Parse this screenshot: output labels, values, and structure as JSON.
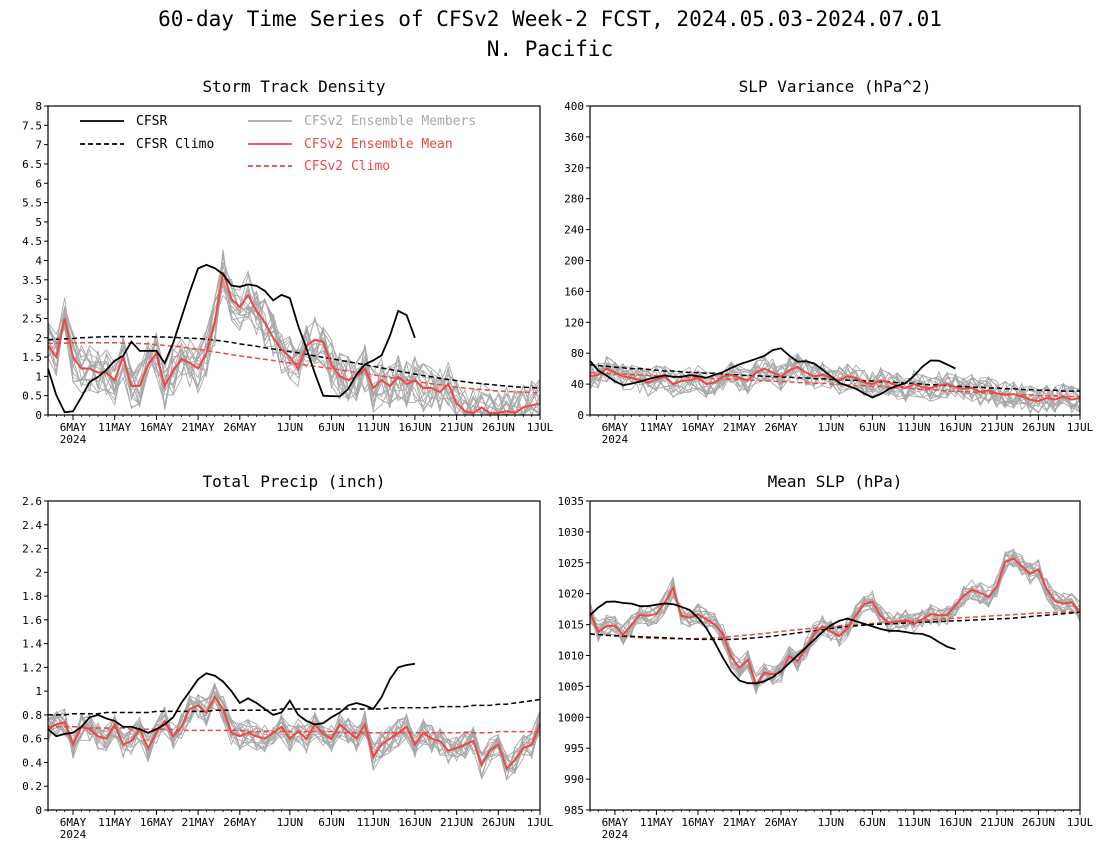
{
  "figure": {
    "title": "60-day Time Series of CFSv2 Week-2 FCST, 2024.05.03-2024.07.01",
    "subtitle": "N. Pacific"
  },
  "legend": {
    "cfsr": "CFSR",
    "cfsr_climo": "CFSR Climo",
    "members": "CFSv2 Ensemble Members",
    "ens_mean": "CFSv2 Ensemble Mean",
    "cfsv2_climo": "CFSv2 Climo"
  },
  "colors": {
    "cfsr": "#000000",
    "cfsr_climo": "#000000",
    "members": "#a8a8a8",
    "ens_mean": "#f04646",
    "cfsv2_climo": "#f04646"
  },
  "x_axis": {
    "ticks": [
      {
        "day": 3,
        "label": "6MAY"
      },
      {
        "day": 8,
        "label": "11MAY"
      },
      {
        "day": 13,
        "label": "16MAY"
      },
      {
        "day": 18,
        "label": "21MAY"
      },
      {
        "day": 23,
        "label": "26MAY"
      },
      {
        "day": 29,
        "label": "1JUN"
      },
      {
        "day": 34,
        "label": "6JUN"
      },
      {
        "day": 39,
        "label": "11JUN"
      },
      {
        "day": 44,
        "label": "16JUN"
      },
      {
        "day": 49,
        "label": "21JUN"
      },
      {
        "day": 54,
        "label": "26JUN"
      },
      {
        "day": 59,
        "label": "1JUL"
      }
    ],
    "year_label": "2024",
    "range": [
      "2024-05-03",
      "2024-07-01"
    ]
  },
  "chart_data": [
    {
      "type": "line",
      "title": "Storm Track Density",
      "ylim": [
        0,
        8
      ],
      "yticks": [
        "0",
        "0.5",
        "1",
        "1.5",
        "2",
        "2.5",
        "3",
        "3.5",
        "4",
        "4.5",
        "5",
        "5.5",
        "6",
        "6.5",
        "7",
        "7.5",
        "8"
      ],
      "show_legend": true,
      "cfsr_obs_days": 45,
      "series": [
        {
          "name": "CFSR",
          "values": [
            1.2,
            0.5,
            0.05,
            0.1,
            0.5,
            0.9,
            1.0,
            1.2,
            1.45,
            1.55,
            2.0,
            1.55,
            1.7,
            1.65,
            1.2,
            2.2,
            2.7,
            3.5,
            4.0,
            3.8,
            3.8,
            3.5,
            3.2,
            3.45,
            3.3,
            3.4,
            2.95,
            3.0,
            3.3,
            2.5,
            1.9,
            1.3,
            0.5,
            0.5,
            0.45,
            0.6,
            1.0,
            1.3,
            1.4,
            1.5,
            2.0,
            2.7,
            2.6,
            2.0
          ]
        },
        {
          "name": "CFSR Climo",
          "values": [
            1.95,
            1.96,
            1.97,
            1.98,
            2.0,
            2.01,
            2.02,
            2.03,
            2.03,
            2.03,
            2.03,
            2.03,
            2.03,
            2.02,
            2.02,
            2.01,
            2.0,
            1.99,
            1.98,
            1.96,
            1.94,
            1.91,
            1.88,
            1.84,
            1.81,
            1.78,
            1.74,
            1.71,
            1.68,
            1.64,
            1.61,
            1.57,
            1.53,
            1.49,
            1.46,
            1.42,
            1.38,
            1.34,
            1.3,
            1.26,
            1.22,
            1.18,
            1.14,
            1.1,
            1.06,
            1.02,
            0.99,
            0.95,
            0.92,
            0.89,
            0.86,
            0.83,
            0.81,
            0.79,
            0.77,
            0.75,
            0.73,
            0.72,
            0.71,
            0.7
          ]
        },
        {
          "name": "CFSv2 Ensemble Mean",
          "values": [
            1.8,
            1.5,
            2.5,
            1.5,
            1.2,
            1.2,
            1.1,
            1.1,
            0.9,
            1.5,
            0.75,
            0.75,
            1.3,
            1.6,
            0.75,
            1.15,
            1.45,
            1.35,
            1.2,
            1.6,
            2.4,
            3.7,
            3.0,
            2.8,
            3.1,
            2.7,
            2.4,
            2.0,
            1.7,
            1.5,
            1.2,
            1.8,
            1.95,
            1.9,
            1.3,
            1.0,
            0.9,
            1.0,
            1.2,
            0.7,
            0.9,
            0.75,
            1.0,
            0.8,
            0.9,
            0.7,
            0.7,
            0.6,
            0.8,
            0.3,
            0.1,
            0.05,
            0.2,
            0.05,
            0.05,
            0.1,
            0.05,
            0.2,
            0.25,
            0.3
          ]
        },
        {
          "name": "CFSv2 Climo",
          "values": [
            1.85,
            1.86,
            1.86,
            1.87,
            1.87,
            1.87,
            1.87,
            1.87,
            1.87,
            1.86,
            1.86,
            1.85,
            1.84,
            1.82,
            1.8,
            1.78,
            1.76,
            1.73,
            1.7,
            1.67,
            1.63,
            1.6,
            1.56,
            1.53,
            1.5,
            1.47,
            1.44,
            1.41,
            1.38,
            1.35,
            1.32,
            1.29,
            1.26,
            1.23,
            1.2,
            1.17,
            1.14,
            1.1,
            1.07,
            1.04,
            1.01,
            0.97,
            0.94,
            0.91,
            0.87,
            0.84,
            0.81,
            0.78,
            0.75,
            0.72,
            0.7,
            0.68,
            0.66,
            0.64,
            0.62,
            0.61,
            0.6,
            0.59,
            0.58,
            0.57
          ]
        }
      ]
    },
    {
      "type": "line",
      "title": "SLP Variance (hPa^2)",
      "ylim": [
        0,
        400
      ],
      "yticks": [
        "0",
        "40",
        "80",
        "120",
        "160",
        "200",
        "240",
        "280",
        "320",
        "360",
        "400"
      ],
      "show_legend": false,
      "cfsr_obs_days": 45,
      "series": [
        {
          "name": "CFSR",
          "values": [
            70,
            58,
            52,
            45,
            38,
            40,
            42,
            45,
            48,
            50,
            52,
            48,
            50,
            52,
            50,
            48,
            52,
            55,
            60,
            65,
            68,
            72,
            74,
            80,
            88,
            85,
            72,
            68,
            70,
            66,
            58,
            50,
            42,
            38,
            35,
            30,
            22,
            24,
            32,
            36,
            40,
            42,
            55,
            65,
            72,
            70,
            65,
            60
          ]
        },
        {
          "name": "CFSR Climo",
          "values": [
            65,
            64,
            63,
            62,
            61,
            60,
            60,
            59,
            58,
            57,
            57,
            56,
            55,
            55,
            54,
            54,
            53,
            52,
            52,
            51,
            51,
            50,
            50,
            49,
            49,
            48,
            48,
            47,
            47,
            46,
            46,
            45,
            45,
            44,
            44,
            43,
            43,
            42,
            41,
            41,
            40,
            39,
            39,
            38,
            37,
            37,
            36,
            36,
            35,
            35,
            34,
            34,
            33,
            33,
            32,
            32,
            32,
            31,
            31,
            31
          ]
        },
        {
          "name": "CFSv2 Ensemble Mean",
          "values": [
            50,
            52,
            60,
            55,
            50,
            48,
            45,
            42,
            46,
            50,
            40,
            44,
            45,
            48,
            40,
            42,
            50,
            52,
            48,
            45,
            55,
            60,
            55,
            50,
            58,
            62,
            55,
            50,
            52,
            48,
            45,
            50,
            48,
            42,
            40,
            45,
            42,
            38,
            35,
            40,
            36,
            35,
            38,
            40,
            36,
            34,
            35,
            30,
            32,
            28,
            26,
            27,
            24,
            20,
            18,
            22,
            20,
            24,
            20,
            22
          ]
        },
        {
          "name": "CFSv2 Climo",
          "values": [
            55,
            54,
            54,
            53,
            53,
            52,
            52,
            51,
            51,
            50,
            50,
            49,
            49,
            48,
            48,
            47,
            47,
            46,
            46,
            45,
            45,
            44,
            44,
            43,
            43,
            42,
            42,
            41,
            41,
            40,
            40,
            39,
            38,
            38,
            37,
            37,
            36,
            35,
            35,
            34,
            33,
            33,
            32,
            31,
            31,
            30,
            30,
            29,
            28,
            28,
            27,
            27,
            26,
            26,
            25,
            25,
            25,
            24,
            24,
            24
          ]
        }
      ]
    },
    {
      "type": "line",
      "title": "Total Precip (inch)",
      "ylim": [
        0,
        2.6
      ],
      "yticks": [
        "0",
        "0.2",
        "0.4",
        "0.6",
        "0.8",
        "1",
        "1.2",
        "1.4",
        "1.6",
        "1.8",
        "2",
        "2.2",
        "2.4",
        "2.6"
      ],
      "show_legend": false,
      "cfsr_obs_days": 45,
      "series": [
        {
          "name": "CFSR",
          "values": [
            0.68,
            0.62,
            0.64,
            0.65,
            0.7,
            0.78,
            0.8,
            0.77,
            0.75,
            0.7,
            0.7,
            0.68,
            0.65,
            0.68,
            0.72,
            0.78,
            0.9,
            1.0,
            1.1,
            1.15,
            1.13,
            1.08,
            1.0,
            0.9,
            0.94,
            0.9,
            0.85,
            0.8,
            0.82,
            0.92,
            0.8,
            0.75,
            0.72,
            0.73,
            0.78,
            0.82,
            0.88,
            0.9,
            0.88,
            0.85,
            0.95,
            1.1,
            1.2,
            1.22,
            1.23
          ]
        },
        {
          "name": "CFSR Climo",
          "values": [
            0.8,
            0.8,
            0.8,
            0.81,
            0.81,
            0.81,
            0.81,
            0.82,
            0.82,
            0.82,
            0.82,
            0.82,
            0.82,
            0.83,
            0.83,
            0.83,
            0.83,
            0.83,
            0.83,
            0.83,
            0.84,
            0.84,
            0.84,
            0.84,
            0.84,
            0.84,
            0.84,
            0.84,
            0.85,
            0.85,
            0.85,
            0.85,
            0.85,
            0.85,
            0.85,
            0.85,
            0.85,
            0.85,
            0.85,
            0.85,
            0.85,
            0.86,
            0.86,
            0.86,
            0.86,
            0.86,
            0.86,
            0.87,
            0.87,
            0.87,
            0.87,
            0.88,
            0.88,
            0.88,
            0.89,
            0.89,
            0.9,
            0.91,
            0.92,
            0.93
          ]
        },
        {
          "name": "CFSv2 Ensemble Mean",
          "values": [
            0.68,
            0.72,
            0.74,
            0.55,
            0.7,
            0.68,
            0.62,
            0.6,
            0.72,
            0.55,
            0.58,
            0.68,
            0.52,
            0.65,
            0.75,
            0.62,
            0.7,
            0.85,
            0.88,
            0.82,
            0.95,
            0.85,
            0.65,
            0.62,
            0.65,
            0.62,
            0.6,
            0.65,
            0.7,
            0.6,
            0.66,
            0.6,
            0.72,
            0.64,
            0.6,
            0.72,
            0.66,
            0.6,
            0.72,
            0.45,
            0.55,
            0.6,
            0.65,
            0.7,
            0.55,
            0.65,
            0.6,
            0.58,
            0.5,
            0.52,
            0.55,
            0.58,
            0.38,
            0.5,
            0.55,
            0.35,
            0.42,
            0.52,
            0.55,
            0.72
          ]
        },
        {
          "name": "CFSv2 Climo",
          "values": [
            0.7,
            0.7,
            0.7,
            0.7,
            0.7,
            0.69,
            0.69,
            0.69,
            0.69,
            0.69,
            0.68,
            0.68,
            0.68,
            0.68,
            0.68,
            0.68,
            0.67,
            0.67,
            0.67,
            0.67,
            0.67,
            0.67,
            0.67,
            0.67,
            0.66,
            0.66,
            0.66,
            0.66,
            0.66,
            0.66,
            0.66,
            0.66,
            0.66,
            0.66,
            0.66,
            0.65,
            0.65,
            0.65,
            0.65,
            0.65,
            0.65,
            0.65,
            0.65,
            0.65,
            0.65,
            0.65,
            0.65,
            0.65,
            0.65,
            0.65,
            0.65,
            0.65,
            0.65,
            0.65,
            0.66,
            0.66,
            0.66,
            0.66,
            0.66,
            0.66
          ]
        }
      ]
    },
    {
      "type": "line",
      "title": "Mean SLP (hPa)",
      "ylim": [
        985,
        1035
      ],
      "yticks": [
        "985",
        "990",
        "995",
        "1000",
        "1005",
        "1010",
        "1015",
        "1020",
        "1025",
        "1030",
        "1035"
      ],
      "show_legend": false,
      "cfsr_obs_days": 45,
      "series": [
        {
          "name": "CFSR",
          "values": [
            1016.5,
            1018,
            1019,
            1018.5,
            1018.5,
            1018,
            1018,
            1018.3,
            1018.5,
            1018,
            1017.5,
            1016,
            1014,
            1011,
            1008,
            1006,
            1005.5,
            1005.5,
            1006,
            1007,
            1008.5,
            1010,
            1011.5,
            1013,
            1014.5,
            1015.5,
            1016,
            1015.5,
            1015,
            1014.5,
            1014,
            1014,
            1013.8,
            1013.5,
            1013.5,
            1012.5,
            1011.5,
            1011
          ]
        },
        {
          "name": "CFSR Climo",
          "values": [
            1013.5,
            1013.3,
            1013.2,
            1013.1,
            1013,
            1012.9,
            1012.8,
            1012.7,
            1012.6,
            1012.6,
            1012.6,
            1012.7,
            1012.9,
            1013.1,
            1013.4,
            1013.7,
            1014,
            1014.3,
            1014.6,
            1014.8,
            1015,
            1015.1,
            1015.2,
            1015.3,
            1015.4,
            1015.5,
            1015.6,
            1015.7,
            1015.8,
            1015.9,
            1016,
            1016.2,
            1016.4,
            1016.6,
            1016.8,
            1017
          ]
        },
        {
          "name": "CFSv2 Ensemble Mean",
          "values": [
            1017,
            1013,
            1016,
            1013,
            1015,
            1017,
            1016,
            1018,
            1021,
            1015,
            1017,
            1016,
            1015,
            1013,
            1007,
            1010,
            1005,
            1008,
            1006,
            1010,
            1009,
            1012,
            1015,
            1014,
            1013,
            1015,
            1018,
            1019,
            1016,
            1015,
            1016,
            1015,
            1016,
            1017,
            1016,
            1018,
            1020,
            1021,
            1019,
            1021,
            1026,
            1025.5,
            1023,
            1024,
            1020,
            1018,
            1019,
            1017
          ]
        },
        {
          "name": "CFSv2 Climo",
          "values": [
            1013.5,
            1013.2,
            1013,
            1012.8,
            1012.7,
            1012.7,
            1012.8,
            1013,
            1013.3,
            1013.6,
            1014,
            1014.3,
            1014.6,
            1014.9,
            1015.1,
            1015.3,
            1015.5,
            1015.7,
            1015.9,
            1016.1,
            1016.3,
            1016.5,
            1016.7,
            1016.9,
            1017,
            1017.1
          ]
        }
      ]
    }
  ]
}
